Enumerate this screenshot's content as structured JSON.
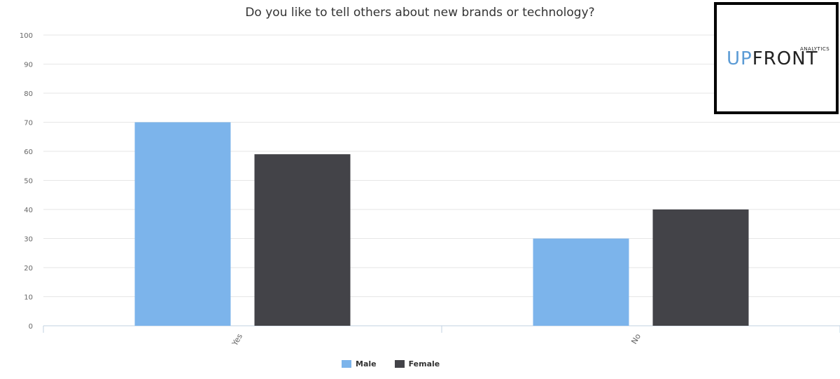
{
  "chart_data": {
    "type": "bar",
    "title": "Do you like to tell others about new brands or technology?",
    "categories": [
      "Yes",
      "No"
    ],
    "series": [
      {
        "name": "Male",
        "values": [
          70,
          30
        ],
        "color": "#7cb4eb"
      },
      {
        "name": "Female",
        "values": [
          59,
          40
        ],
        "color": "#434348"
      }
    ],
    "ylim": [
      0,
      100
    ],
    "yticks": [
      0,
      10,
      20,
      30,
      40,
      50,
      60,
      70,
      80,
      90,
      100
    ],
    "xlabel": "",
    "ylabel": "",
    "grid": true,
    "legend_position": "bottom-center"
  },
  "logo": {
    "part1": "UP",
    "part2": "FRONT",
    "subtitle": "ANALYTICS",
    "primary_color": "#5b9bd5"
  }
}
